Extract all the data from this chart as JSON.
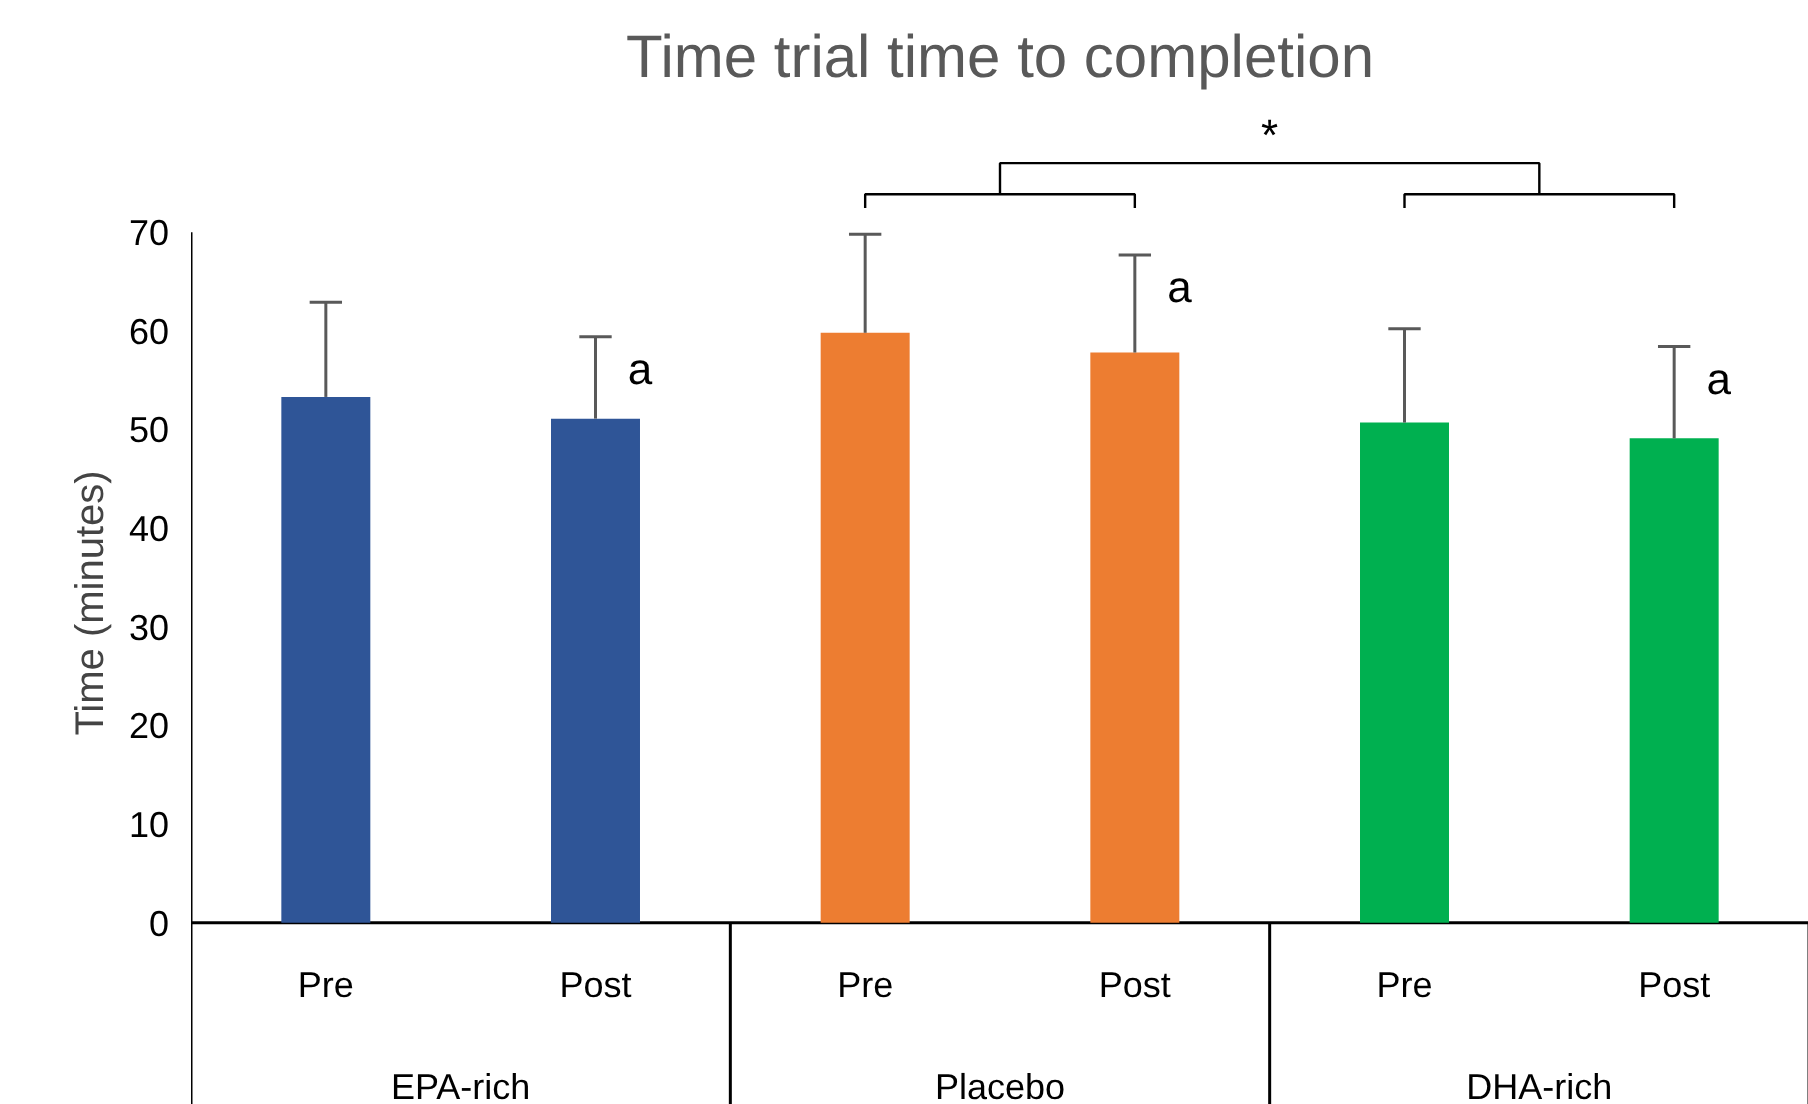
{
  "chart_data": {
    "type": "bar",
    "title": "Time trial time to completion",
    "ylabel": "Time (minutes)",
    "categories": [
      "EPA-rich",
      "Placebo",
      "DHA-rich"
    ],
    "series": [
      {
        "name": "Pre",
        "colors": [
          "#2f5597",
          "#ed7d31",
          "#00b050"
        ],
        "values": [
          53.3,
          59.8,
          50.7
        ],
        "errors": [
          [
            53.3,
            62.9
          ],
          [
            59.8,
            69.8
          ],
          [
            50.7,
            60.2
          ]
        ]
      },
      {
        "name": "Post",
        "colors": [
          "#2f5597",
          "#ed7d31",
          "#00b050"
        ],
        "values": [
          51.1,
          57.8,
          49.1
        ],
        "errors": [
          [
            51.1,
            59.4
          ],
          [
            57.8,
            67.7
          ],
          [
            49.1,
            58.4
          ]
        ]
      }
    ],
    "ylim": [
      0,
      70
    ],
    "yticks": [
      0,
      10,
      20,
      30,
      40,
      50,
      60,
      70
    ],
    "grid": false,
    "annotations": [
      "a",
      "a",
      "a",
      "*"
    ]
  }
}
